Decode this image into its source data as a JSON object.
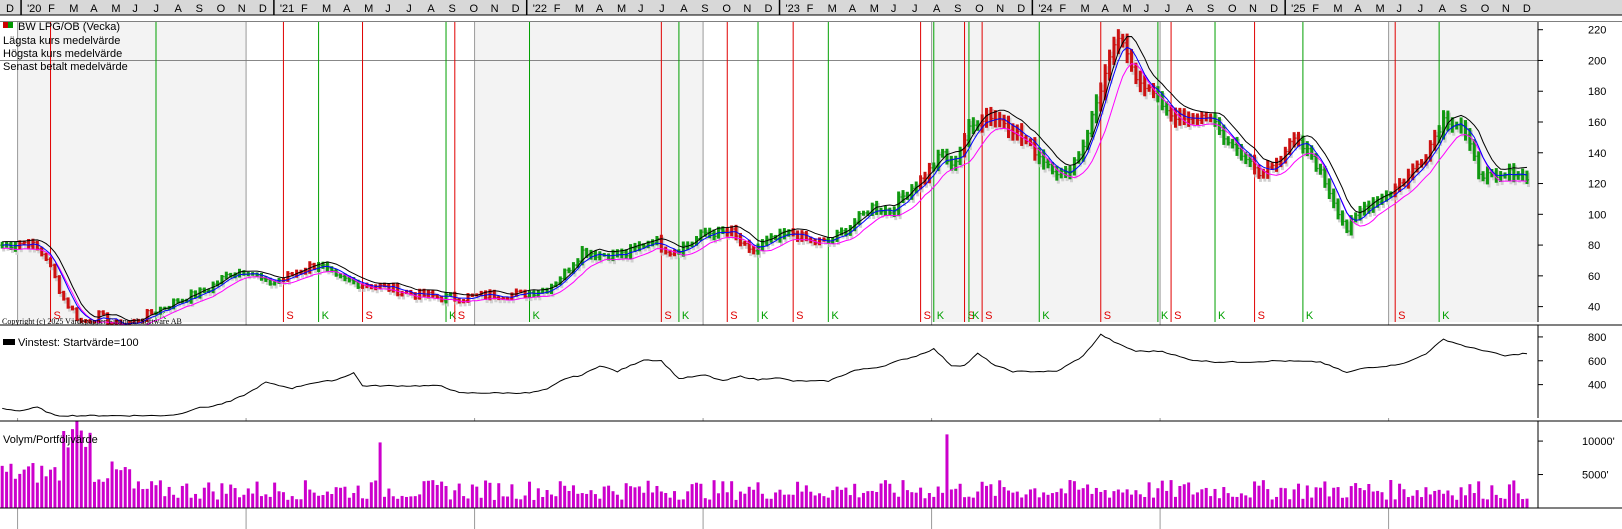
{
  "chart_data": [
    {
      "type": "ohlc",
      "title": "BW LPG/OB (Vecka)",
      "legend": [
        "Lägsta kurs medelvärde",
        "Högsta kurs medelvärde",
        "Senast betalt medelvärde"
      ],
      "copyright": "Copyright (c) 2025 Värdepapper Financial Software AB",
      "legend_placement": "top-left",
      "x_month_labels": [
        "D",
        "'20",
        "F",
        "M",
        "A",
        "M",
        "J",
        "J",
        "A",
        "S",
        "O",
        "N",
        "D",
        "'21",
        "F",
        "M",
        "A",
        "M",
        "J",
        "J",
        "A",
        "S",
        "O",
        "N",
        "D",
        "'22",
        "F",
        "M",
        "A",
        "M",
        "J",
        "J",
        "A",
        "S",
        "O",
        "N",
        "D",
        "'23",
        "F",
        "M",
        "A",
        "M",
        "J",
        "J",
        "A",
        "S",
        "O",
        "N",
        "D",
        "'24",
        "F",
        "M",
        "A",
        "M",
        "J",
        "J",
        "A",
        "S",
        "O",
        "N",
        "D",
        "'25",
        "F",
        "M",
        "A",
        "M",
        "J",
        "J",
        "A",
        "S",
        "O",
        "N",
        "D"
      ],
      "y_ticks": [
        40,
        60,
        80,
        100,
        120,
        140,
        160,
        180,
        200,
        220
      ],
      "ylim": [
        30,
        225
      ],
      "reference_line": 200,
      "weekly_close_anchors": [
        [
          0,
          80
        ],
        [
          6,
          82
        ],
        [
          10,
          72
        ],
        [
          14,
          45
        ],
        [
          18,
          30
        ],
        [
          22,
          34
        ],
        [
          26,
          28
        ],
        [
          30,
          30
        ],
        [
          34,
          36
        ],
        [
          40,
          44
        ],
        [
          46,
          50
        ],
        [
          52,
          62
        ],
        [
          56,
          64
        ],
        [
          60,
          55
        ],
        [
          64,
          58
        ],
        [
          68,
          64
        ],
        [
          72,
          68
        ],
        [
          76,
          58
        ],
        [
          82,
          55
        ],
        [
          88,
          52
        ],
        [
          94,
          48
        ],
        [
          100,
          46
        ],
        [
          106,
          46
        ],
        [
          112,
          48
        ],
        [
          118,
          48
        ],
        [
          124,
          52
        ],
        [
          128,
          62
        ],
        [
          132,
          76
        ],
        [
          136,
          74
        ],
        [
          142,
          74
        ],
        [
          148,
          84
        ],
        [
          152,
          76
        ],
        [
          156,
          80
        ],
        [
          160,
          88
        ],
        [
          166,
          88
        ],
        [
          170,
          75
        ],
        [
          174,
          82
        ],
        [
          180,
          88
        ],
        [
          184,
          82
        ],
        [
          188,
          82
        ],
        [
          192,
          90
        ],
        [
          198,
          105
        ],
        [
          202,
          102
        ],
        [
          206,
          115
        ],
        [
          210,
          125
        ],
        [
          214,
          140
        ],
        [
          216,
          130
        ],
        [
          220,
          155
        ],
        [
          224,
          165
        ],
        [
          228,
          160
        ],
        [
          232,
          150
        ],
        [
          236,
          138
        ],
        [
          240,
          128
        ],
        [
          242,
          125
        ],
        [
          246,
          145
        ],
        [
          252,
          200
        ],
        [
          254,
          215
        ],
        [
          258,
          190
        ],
        [
          262,
          178
        ],
        [
          266,
          165
        ],
        [
          270,
          160
        ],
        [
          274,
          165
        ],
        [
          278,
          150
        ],
        [
          282,
          140
        ],
        [
          286,
          125
        ],
        [
          290,
          135
        ],
        [
          294,
          148
        ],
        [
          298,
          138
        ],
        [
          302,
          115
        ],
        [
          306,
          90
        ],
        [
          310,
          105
        ],
        [
          316,
          115
        ],
        [
          320,
          125
        ],
        [
          324,
          140
        ],
        [
          328,
          162
        ],
        [
          332,
          158
        ],
        [
          336,
          128
        ],
        [
          340,
          122
        ],
        [
          344,
          128
        ],
        [
          346,
          125
        ]
      ],
      "signals": [
        {
          "week": 11,
          "type": "S"
        },
        {
          "week": 35,
          "type": "K"
        },
        {
          "week": 64,
          "type": "S"
        },
        {
          "week": 72,
          "type": "K"
        },
        {
          "week": 82,
          "type": "S"
        },
        {
          "week": 101,
          "type": "K"
        },
        {
          "week": 103,
          "type": "S"
        },
        {
          "week": 120,
          "type": "K"
        },
        {
          "week": 150,
          "type": "S"
        },
        {
          "week": 154,
          "type": "K"
        },
        {
          "week": 165,
          "type": "S"
        },
        {
          "week": 172,
          "type": "K"
        },
        {
          "week": 180,
          "type": "S"
        },
        {
          "week": 188,
          "type": "K"
        },
        {
          "week": 209,
          "type": "S"
        },
        {
          "week": 212,
          "type": "K"
        },
        {
          "week": 219,
          "type": "S"
        },
        {
          "week": 220,
          "type": "K"
        },
        {
          "week": 223,
          "type": "S"
        },
        {
          "week": 236,
          "type": "K"
        },
        {
          "week": 250,
          "type": "S"
        },
        {
          "week": 263,
          "type": "K"
        },
        {
          "week": 266,
          "type": "S"
        },
        {
          "week": 276,
          "type": "K"
        },
        {
          "week": 285,
          "type": "S"
        },
        {
          "week": 296,
          "type": "K"
        },
        {
          "week": 317,
          "type": "S"
        },
        {
          "week": 327,
          "type": "K"
        }
      ]
    },
    {
      "type": "line",
      "title": "Vinstest: Startvärde=100",
      "y_ticks": [
        400,
        600,
        800
      ],
      "ylim": [
        120,
        900
      ],
      "anchors": [
        [
          0,
          200
        ],
        [
          4,
          180
        ],
        [
          8,
          210
        ],
        [
          12,
          140
        ],
        [
          20,
          140
        ],
        [
          30,
          140
        ],
        [
          36,
          140
        ],
        [
          40,
          150
        ],
        [
          44,
          200
        ],
        [
          48,
          220
        ],
        [
          52,
          260
        ],
        [
          56,
          330
        ],
        [
          60,
          420
        ],
        [
          62,
          400
        ],
        [
          66,
          370
        ],
        [
          70,
          410
        ],
        [
          76,
          440
        ],
        [
          80,
          500
        ],
        [
          82,
          390
        ],
        [
          90,
          390
        ],
        [
          100,
          390
        ],
        [
          104,
          330
        ],
        [
          112,
          330
        ],
        [
          120,
          330
        ],
        [
          124,
          360
        ],
        [
          128,
          450
        ],
        [
          132,
          480
        ],
        [
          136,
          560
        ],
        [
          140,
          510
        ],
        [
          146,
          610
        ],
        [
          150,
          600
        ],
        [
          154,
          450
        ],
        [
          160,
          480
        ],
        [
          164,
          430
        ],
        [
          168,
          470
        ],
        [
          172,
          440
        ],
        [
          176,
          460
        ],
        [
          180,
          430
        ],
        [
          184,
          430
        ],
        [
          188,
          430
        ],
        [
          194,
          520
        ],
        [
          200,
          550
        ],
        [
          204,
          600
        ],
        [
          208,
          640
        ],
        [
          212,
          700
        ],
        [
          216,
          560
        ],
        [
          219,
          560
        ],
        [
          222,
          660
        ],
        [
          226,
          560
        ],
        [
          230,
          510
        ],
        [
          236,
          510
        ],
        [
          240,
          510
        ],
        [
          246,
          640
        ],
        [
          250,
          820
        ],
        [
          254,
          740
        ],
        [
          258,
          680
        ],
        [
          264,
          680
        ],
        [
          270,
          610
        ],
        [
          276,
          590
        ],
        [
          284,
          590
        ],
        [
          290,
          600
        ],
        [
          300,
          590
        ],
        [
          306,
          500
        ],
        [
          310,
          540
        ],
        [
          316,
          560
        ],
        [
          320,
          590
        ],
        [
          324,
          660
        ],
        [
          328,
          780
        ],
        [
          334,
          710
        ],
        [
          338,
          680
        ],
        [
          342,
          640
        ],
        [
          346,
          660
        ]
      ]
    },
    {
      "type": "bar",
      "title": "Volym/Portföljvärde",
      "y_ticks": [
        "5000'",
        "10000'"
      ],
      "ylim": [
        0,
        13000
      ],
      "notable_values": [
        {
          "week": 17,
          "value": 13000
        },
        {
          "week": 86,
          "value": 9800
        },
        {
          "week": 215,
          "value": 11000
        },
        {
          "week": 250,
          "value": 2400
        },
        {
          "week": 348,
          "value": 4200
        }
      ]
    }
  ]
}
